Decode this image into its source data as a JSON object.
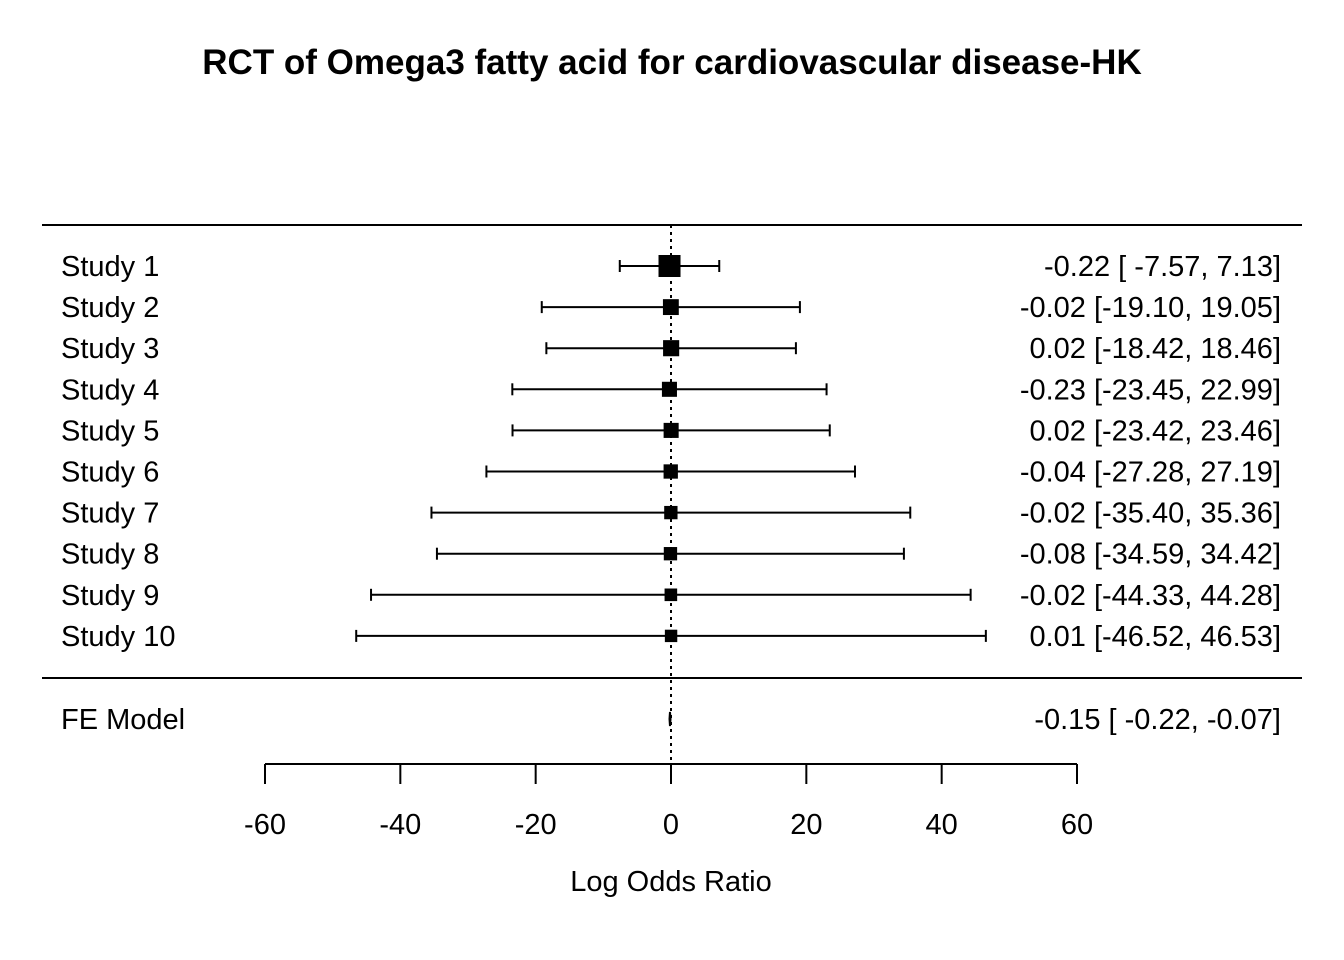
{
  "chart_data": {
    "type": "forest",
    "title": "RCT of Omega3 fatty acid for cardiovascular disease-HK",
    "xlabel": "Log Odds Ratio",
    "xlim": [
      -60,
      60
    ],
    "xticks": [
      -60,
      -40,
      -20,
      0,
      20,
      40,
      60
    ],
    "xtick_labels": [
      "-60",
      "-40",
      "-20",
      "0",
      "20",
      "40",
      "60"
    ],
    "reference_line": 0,
    "studies": [
      {
        "label": "Study 1",
        "estimate": -0.22,
        "lower": -7.57,
        "upper": 7.13,
        "weight": 1.0,
        "text": "-0.22 [ -7.57,  7.13]"
      },
      {
        "label": "Study 2",
        "estimate": -0.02,
        "lower": -19.1,
        "upper": 19.05,
        "weight": 0.38,
        "text": "-0.02 [-19.10, 19.05]"
      },
      {
        "label": "Study 3",
        "estimate": 0.02,
        "lower": -18.42,
        "upper": 18.46,
        "weight": 0.4,
        "text": "0.02 [-18.42, 18.46]"
      },
      {
        "label": "Study 4",
        "estimate": -0.23,
        "lower": -23.45,
        "upper": 22.99,
        "weight": 0.32,
        "text": "-0.23 [-23.45, 22.99]"
      },
      {
        "label": "Study 5",
        "estimate": 0.02,
        "lower": -23.42,
        "upper": 23.46,
        "weight": 0.32,
        "text": "0.02 [-23.42, 23.46]"
      },
      {
        "label": "Study 6",
        "estimate": -0.04,
        "lower": -27.28,
        "upper": 27.19,
        "weight": 0.27,
        "text": "-0.04 [-27.28, 27.19]"
      },
      {
        "label": "Study 7",
        "estimate": -0.02,
        "lower": -35.4,
        "upper": 35.36,
        "weight": 0.21,
        "text": "-0.02 [-35.40, 35.36]"
      },
      {
        "label": "Study 8",
        "estimate": -0.08,
        "lower": -34.59,
        "upper": 34.42,
        "weight": 0.21,
        "text": "-0.08 [-34.59, 34.42]"
      },
      {
        "label": "Study 9",
        "estimate": -0.02,
        "lower": -44.33,
        "upper": 44.28,
        "weight": 0.17,
        "text": "-0.02 [-44.33, 44.28]"
      },
      {
        "label": "Study 10",
        "estimate": 0.01,
        "lower": -46.52,
        "upper": 46.53,
        "weight": 0.16,
        "text": "0.01 [-46.52, 46.53]"
      }
    ],
    "summary": {
      "label": "FE Model",
      "estimate": -0.15,
      "lower": -0.22,
      "upper": -0.07,
      "text": "-0.15 [ -0.22, -0.07]"
    }
  }
}
